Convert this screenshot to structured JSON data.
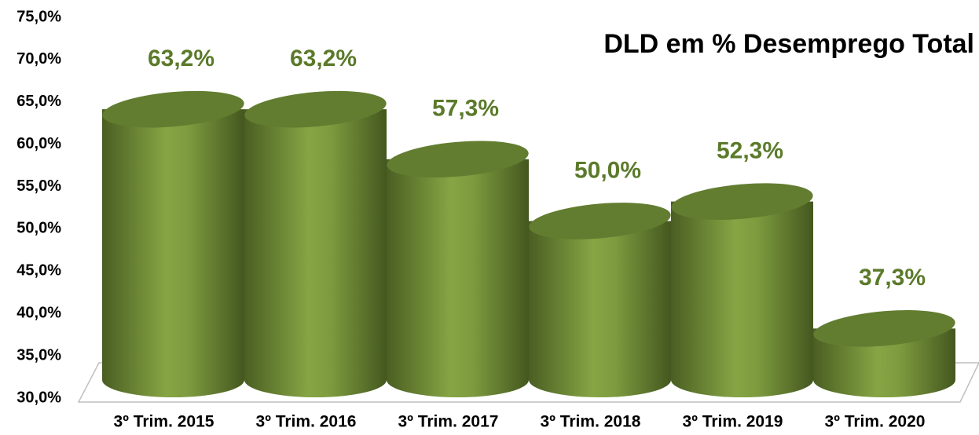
{
  "chart_data": {
    "type": "bar",
    "title": "DLD em % Desemprego Total",
    "categories": [
      "3º Trim. 2015",
      "3º Trim. 2016",
      "3º Trim. 2017",
      "3º Trim. 2018",
      "3º Trim. 2019",
      "3º Trim. 2020"
    ],
    "values": [
      63.2,
      63.2,
      57.3,
      50.0,
      52.3,
      37.3
    ],
    "value_labels": [
      "63,2%",
      "63,2%",
      "57,3%",
      "50,0%",
      "52,3%",
      "37,3%"
    ],
    "color": "#76923c",
    "ylim": [
      30,
      75
    ],
    "yticks": [
      {
        "value": 30,
        "label": "30,0%"
      },
      {
        "value": 35,
        "label": "35,0%"
      },
      {
        "value": 40,
        "label": "40,0%"
      },
      {
        "value": 45,
        "label": "45,0%"
      },
      {
        "value": 50,
        "label": "50,0%"
      },
      {
        "value": 55,
        "label": "55,0%"
      },
      {
        "value": 60,
        "label": "60,0%"
      },
      {
        "value": 65,
        "label": "65,0%"
      },
      {
        "value": 70,
        "label": "70,0%"
      },
      {
        "value": 75,
        "label": "75,0%"
      }
    ]
  }
}
